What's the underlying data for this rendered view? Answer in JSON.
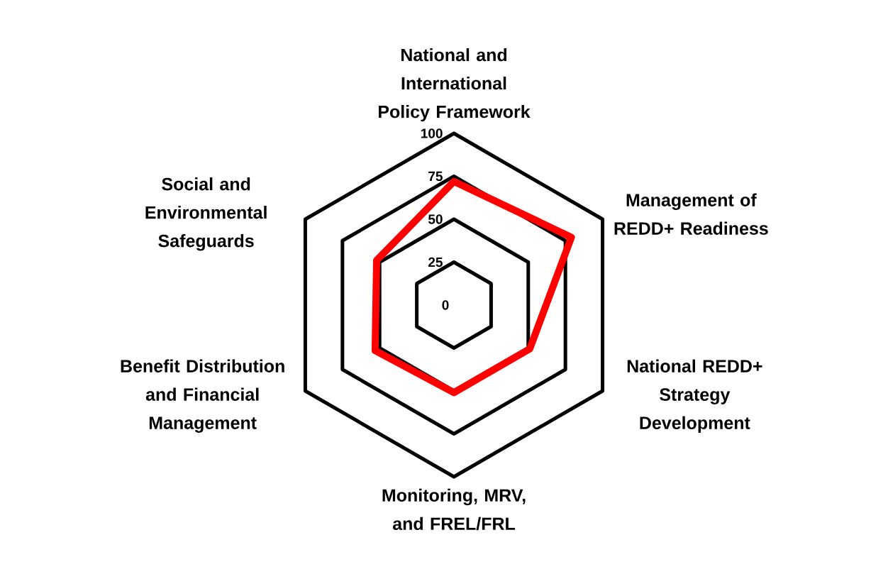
{
  "chart_data": {
    "type": "radar",
    "categories": [
      "National and International Policy Framework",
      "Management of REDD+ Readiness",
      "National REDD+ Strategy Development",
      "Monitoring, MRV, and FREL/FRL",
      "Benefit Distribution and Financial Management",
      "Social and Environmental Safeguards"
    ],
    "series": [
      {
        "color": "#ff0000",
        "values": [
          72,
          79,
          51,
          51,
          53,
          52
        ]
      }
    ],
    "ylim": [
      0,
      100
    ],
    "yticks": [
      0,
      25,
      50,
      75,
      100
    ],
    "grid": true
  }
}
